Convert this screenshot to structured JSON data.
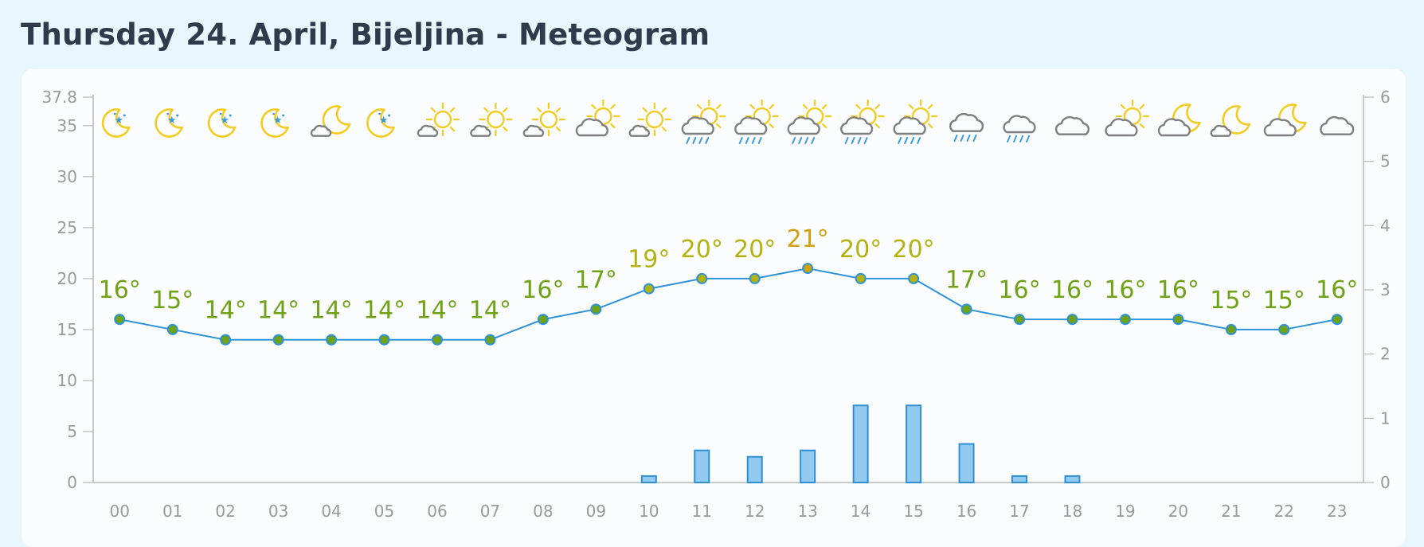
{
  "page": {
    "title": "Thursday 24. April, Bijeljina - Meteogram"
  },
  "chart_data": {
    "type": "line",
    "title": "",
    "x": [
      "00",
      "01",
      "02",
      "03",
      "04",
      "05",
      "06",
      "07",
      "08",
      "09",
      "10",
      "11",
      "12",
      "13",
      "14",
      "15",
      "16",
      "17",
      "18",
      "19",
      "20",
      "21",
      "22",
      "23"
    ],
    "y_left": {
      "min": 0,
      "max": 37.8,
      "ticks": [
        "0",
        "5",
        "10",
        "15",
        "20",
        "25",
        "30",
        "35",
        "37.8"
      ]
    },
    "y_right": {
      "min": 0,
      "max": 6,
      "ticks": [
        "0",
        "1",
        "2",
        "3",
        "4",
        "5",
        "6"
      ]
    },
    "series": [
      {
        "type": "line",
        "axis": "left",
        "values": [
          16,
          15,
          14,
          14,
          14,
          14,
          14,
          14,
          16,
          17,
          19,
          20,
          20,
          21,
          20,
          20,
          17,
          16,
          16,
          16,
          16,
          15,
          15,
          16
        ],
        "labels": [
          "16°",
          "15°",
          "14°",
          "14°",
          "14°",
          "14°",
          "14°",
          "14°",
          "16°",
          "17°",
          "19°",
          "20°",
          "20°",
          "21°",
          "20°",
          "20°",
          "17°",
          "16°",
          "16°",
          "16°",
          "16°",
          "15°",
          "15°",
          "16°"
        ],
        "line_color": "#2e93d8"
      },
      {
        "type": "bar",
        "axis": "right",
        "values": [
          0,
          0,
          0,
          0,
          0,
          0,
          0,
          0,
          0,
          0,
          0.1,
          0.5,
          0.4,
          0.5,
          1.2,
          1.2,
          0.6,
          0.1,
          0.1,
          0,
          0,
          0,
          0,
          0
        ],
        "fill_color": "#93caf0",
        "stroke_color": "#2d8fd6"
      }
    ],
    "weather_icons": [
      "clear-night-icon",
      "clear-night-icon",
      "clear-night-icon",
      "clear-night-icon",
      "partly-cloudy-night-icon",
      "clear-night-icon",
      "partly-cloudy-day-icon",
      "partly-cloudy-day-icon",
      "partly-cloudy-day-icon",
      "mostly-cloudy-day-icon",
      "partly-cloudy-day-icon",
      "cloudy-rain-sun-icon",
      "cloudy-rain-sun-icon",
      "cloudy-rain-sun-icon",
      "cloudy-rain-sun-icon",
      "cloudy-rain-sun-icon",
      "rain-icon",
      "light-rain-icon",
      "cloud-icon",
      "mostly-cloudy-day-icon",
      "mostly-cloudy-night-icon",
      "partly-cloudy-night-icon",
      "mostly-cloudy-night-icon",
      "cloud-icon"
    ],
    "colors": {
      "temp_cool": "#6fa215",
      "temp_mild": "#b3b20e",
      "temp_warm": "#cfa010",
      "axis": "#b8b8b8",
      "sun": "#f2cc1f",
      "cloud": "#7f7f7f",
      "rain": "#3d9ad9"
    }
  }
}
